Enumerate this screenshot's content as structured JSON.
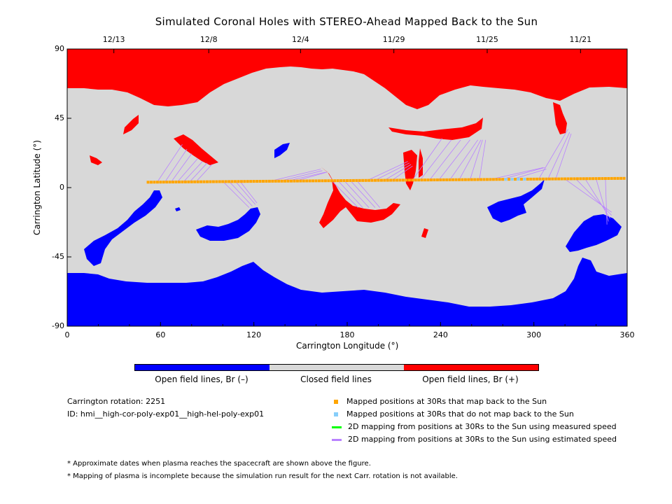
{
  "chart_data": {
    "type": "map",
    "title": "Simulated Coronal Holes with STEREO-Ahead Mapped Back to the Sun",
    "xlabel": "Carrington Longitude (°)",
    "ylabel": "Carrington Latitude (°)",
    "xlim": [
      0,
      360
    ],
    "ylim": [
      -90,
      90
    ],
    "x_ticks": [
      "0",
      "60",
      "120",
      "180",
      "240",
      "300",
      "360"
    ],
    "y_ticks": [
      "90",
      "45",
      "0",
      "-45",
      "-90"
    ],
    "top_dates": [
      {
        "label": "12/13",
        "lon": 30
      },
      {
        "label": "12/8",
        "lon": 91
      },
      {
        "label": "12/4",
        "lon": 150
      },
      {
        "label": "11/29",
        "lon": 210
      },
      {
        "label": "11/25",
        "lon": 270
      },
      {
        "label": "11/21",
        "lon": 330
      }
    ],
    "mapped_track": {
      "lon_start": 52,
      "lon_end": 358,
      "lat_start": 3.5,
      "lat_end": 6
    },
    "unmapped_points_lon": [
      282,
      286,
      290,
      294
    ],
    "mapping_lines": [
      [
        74,
        28,
        58,
        3.8
      ],
      [
        77,
        25,
        63,
        3.9
      ],
      [
        80,
        22,
        67,
        3.9
      ],
      [
        84,
        19,
        71,
        3.9
      ],
      [
        87,
        17,
        75,
        4.0
      ],
      [
        90,
        16,
        79,
        4.0
      ],
      [
        93,
        15,
        83,
        4.0
      ],
      [
        117,
        -13,
        100,
        4.1
      ],
      [
        119,
        -12,
        104,
        4.1
      ],
      [
        121,
        -11,
        108,
        4.2
      ],
      [
        122,
        -10,
        111,
        4.2
      ],
      [
        163,
        12,
        131,
        4.3
      ],
      [
        164,
        11,
        137,
        4.3
      ],
      [
        166,
        10,
        142,
        4.4
      ],
      [
        167,
        10,
        147,
        4.4
      ],
      [
        187,
        -13,
        170,
        4.5
      ],
      [
        190,
        -13,
        174,
        4.6
      ],
      [
        194,
        -13,
        178,
        4.6
      ],
      [
        198,
        -13,
        182,
        4.6
      ],
      [
        201,
        -13,
        186,
        4.7
      ],
      [
        219,
        17,
        193,
        4.7
      ],
      [
        220,
        16,
        198,
        4.8
      ],
      [
        221,
        15,
        204,
        4.8
      ],
      [
        222,
        14,
        209,
        4.9
      ],
      [
        241,
        32,
        222,
        4.9
      ],
      [
        247,
        31,
        227,
        5.0
      ],
      [
        253,
        31,
        233,
        5.0
      ],
      [
        259,
        31,
        239,
        5.1
      ],
      [
        264,
        31,
        246,
        5.1
      ],
      [
        266,
        31,
        252,
        5.2
      ],
      [
        267,
        31,
        259,
        5.2
      ],
      [
        269,
        31,
        265,
        5.2
      ],
      [
        306,
        13,
        272,
        5.3
      ],
      [
        307,
        13,
        279,
        5.3
      ],
      [
        308,
        12,
        286,
        5.4
      ],
      [
        322,
        38,
        303,
        5.4
      ],
      [
        323,
        36,
        309,
        5.5
      ],
      [
        324,
        35,
        314,
        5.5
      ],
      [
        350,
        -16,
        320,
        5.5
      ],
      [
        350,
        -18,
        327,
        5.6
      ],
      [
        349,
        -20,
        333,
        5.6
      ],
      [
        348,
        -22,
        340,
        5.7
      ],
      [
        347,
        -24,
        346,
        5.7
      ]
    ]
  },
  "colorbar": {
    "colors": [
      "#0000ff",
      "#d8d8d8",
      "#ff0000"
    ],
    "labels": [
      "Open field lines, Br (–)",
      "Closed field lines",
      "Open field lines, Br (+)"
    ]
  },
  "info": {
    "rotation": "Carrington rotation: 2251",
    "id": "ID: hmi__high-cor-poly-exp01__high-hel-poly-exp01"
  },
  "legend": [
    {
      "label": "Mapped positions at 30Rs that map back to the Sun",
      "color": "#ffa500",
      "kind": "dot"
    },
    {
      "label": "Mapped positions at 30Rs that do not map back to the Sun",
      "color": "#87cefa",
      "kind": "dot"
    },
    {
      "label": "2D mapping from positions at 30Rs to the Sun using measured speed",
      "color": "#00ff00",
      "kind": "line"
    },
    {
      "label": "2D mapping from positions at 30Rs to the Sun using estimated speed",
      "color": "#b982ff",
      "kind": "line"
    }
  ],
  "notes": [
    "* Approximate dates when plasma reaches the spacecraft are shown above the figure.",
    "* Mapping of plasma is incomplete because the simulation run result for the next Carr. rotation is not available."
  ],
  "colors": {
    "negative": "#0000ff",
    "closed": "#d8d8d8",
    "positive": "#ff0000",
    "mapped": "#ffa500",
    "unmapped": "#87cefa",
    "mapping_line": "#b982ff"
  }
}
